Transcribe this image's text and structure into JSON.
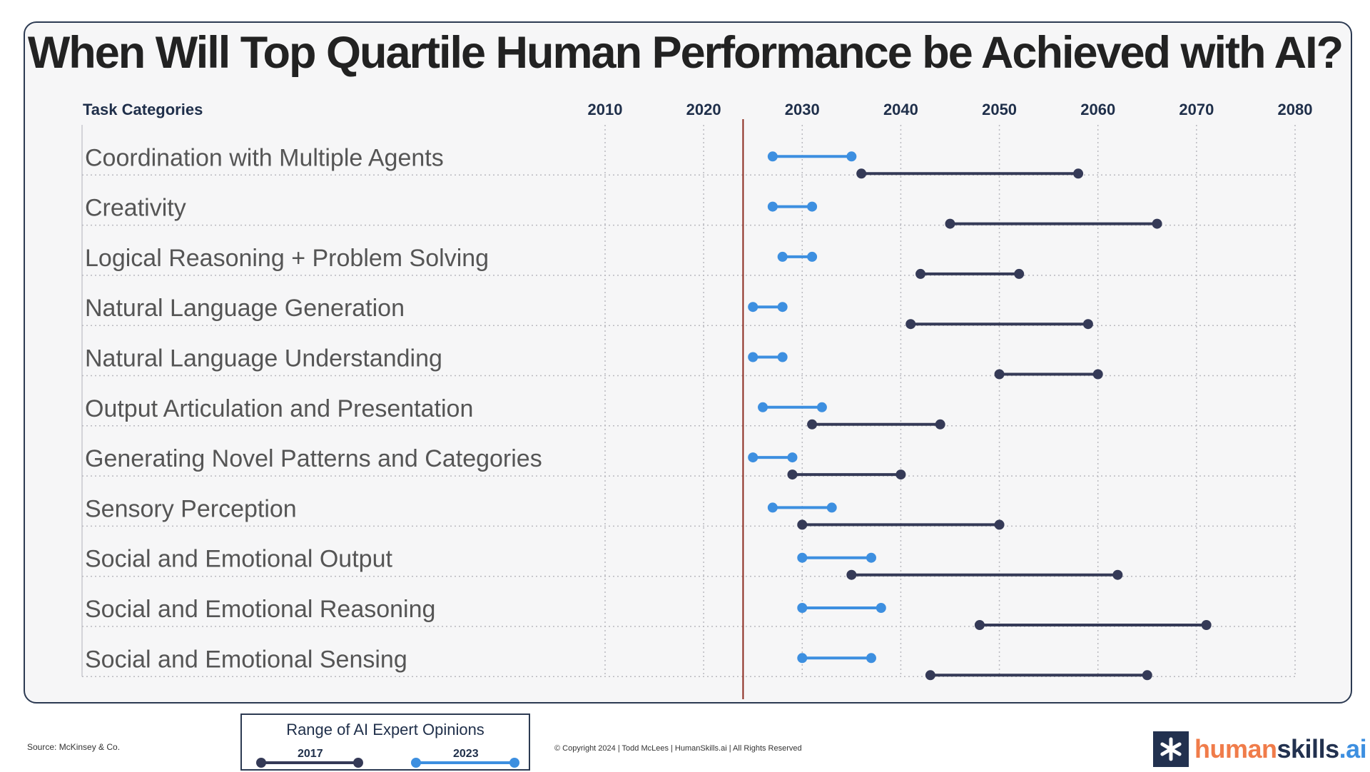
{
  "title": "When Will Top Quartile Human Performance be Achieved with AI?",
  "header": {
    "task_categories": "Task Categories"
  },
  "chart_data": {
    "type": "dumbbell",
    "x_ticks": [
      "2010",
      "2020",
      "2030",
      "2040",
      "2050",
      "2060",
      "2070",
      "2080"
    ],
    "xlim": [
      2010,
      2080
    ],
    "reference_line_year": 2024,
    "categories": [
      "Coordination with Multiple Agents",
      "Creativity",
      "Logical Reasoning + Problem Solving",
      "Natural Language Generation",
      "Natural Language Understanding",
      "Output Articulation and Presentation",
      "Generating Novel Patterns and Categories",
      "Sensory Perception",
      "Social and Emotional Output",
      "Social and Emotional Reasoning",
      "Social and Emotional Sensing"
    ],
    "series": [
      {
        "name": "2023",
        "color": "#3d8fe0",
        "ranges": [
          [
            2027,
            2035
          ],
          [
            2027,
            2031
          ],
          [
            2028,
            2031
          ],
          [
            2025,
            2028
          ],
          [
            2025,
            2028
          ],
          [
            2026,
            2032
          ],
          [
            2025,
            2029
          ],
          [
            2027,
            2033
          ],
          [
            2030,
            2037
          ],
          [
            2030,
            2038
          ],
          [
            2030,
            2037
          ]
        ]
      },
      {
        "name": "2017",
        "color": "#353a57",
        "ranges": [
          [
            2036,
            2058
          ],
          [
            2045,
            2066
          ],
          [
            2042,
            2052
          ],
          [
            2041,
            2059
          ],
          [
            2050,
            2060
          ],
          [
            2031,
            2044
          ],
          [
            2029,
            2040
          ],
          [
            2030,
            2050
          ],
          [
            2035,
            2062
          ],
          [
            2048,
            2071
          ],
          [
            2043,
            2065
          ]
        ]
      }
    ]
  },
  "legend": {
    "title": "Range of AI Expert Opinions",
    "label_2017": "2017",
    "label_2023": "2023"
  },
  "footer": {
    "source": "Source: McKinsey & Co.",
    "copyright": "© Copyright 2024 | Todd McLees | HumanSkills.ai | All Rights Reserved"
  },
  "logo": {
    "part1": "human",
    "part2": "skills",
    "part3": ".ai"
  },
  "colors": {
    "series_2023": "#3d8fe0",
    "series_2017": "#353a57",
    "reference_line": "#8b2a1e",
    "logo_mark": "#22314f"
  }
}
